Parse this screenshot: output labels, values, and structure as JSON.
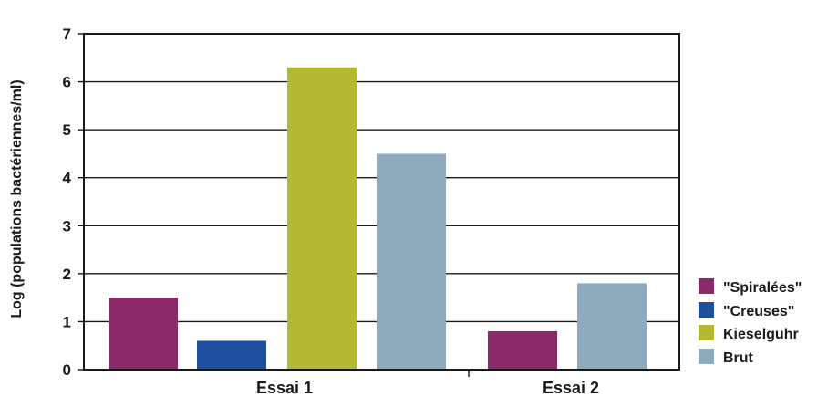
{
  "chart_data": {
    "type": "bar",
    "title": "",
    "xlabel": "",
    "ylabel": "Log (populations bactériennes/ml)",
    "ylim": [
      0,
      7
    ],
    "yticks": [
      "0",
      "1",
      "2",
      "3",
      "4",
      "5",
      "6",
      "7"
    ],
    "grid": true,
    "legend_position": "right-bottom",
    "categories": [
      "Essai 1",
      "Essai 2"
    ],
    "series": [
      {
        "name": "\"Spiralées\"",
        "color": "#8b2a6b",
        "values": [
          1.5,
          0.8
        ]
      },
      {
        "name": "\"Creuses\"",
        "color": "#1d4f9e",
        "values": [
          0.6,
          null
        ]
      },
      {
        "name": "Kieselguhr",
        "color": "#b3b933",
        "values": [
          6.3,
          null
        ]
      },
      {
        "name": "Brut",
        "color": "#8eabbe",
        "values": [
          4.5,
          1.8
        ]
      }
    ]
  }
}
